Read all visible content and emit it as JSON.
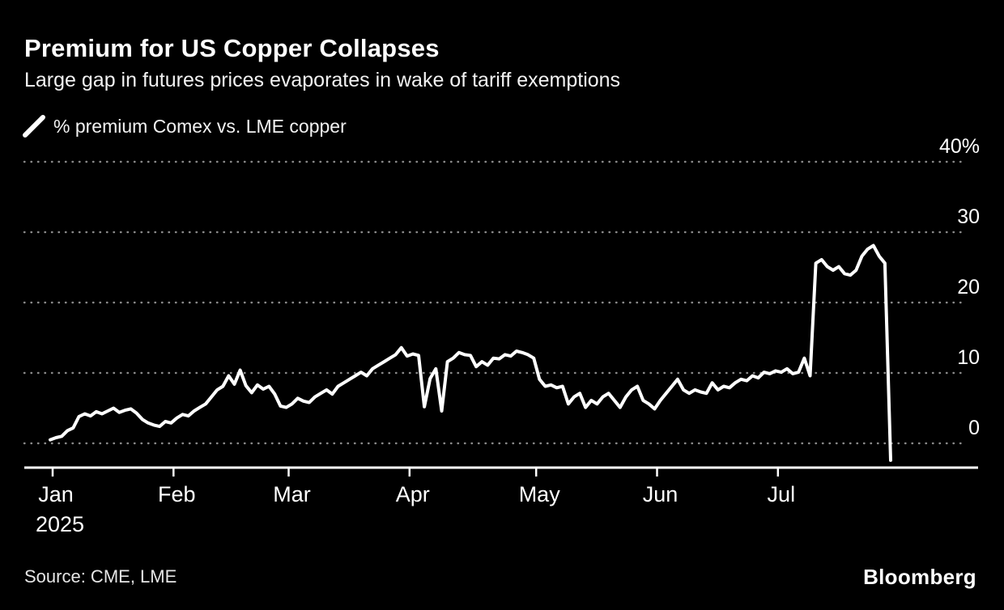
{
  "header": {
    "title": "Premium for US Copper Collapses",
    "subtitle": "Large gap in futures prices evaporates in wake of tariff exemptions"
  },
  "legend": {
    "label": "% premium Comex vs. LME copper"
  },
  "footer": {
    "source": "Source: CME, LME",
    "brand": "Bloomberg"
  },
  "colors": {
    "background": "#000000",
    "line": "#ffffff",
    "grid": "#8a8a8a",
    "axis": "#ffffff",
    "text": "#ffffff"
  },
  "chart_data": {
    "type": "line",
    "title": "% premium Comex vs. LME copper",
    "unit": "%",
    "xlabel": "",
    "ylabel": "% premium",
    "ylim": [
      -3,
      42
    ],
    "grid": "dotted-horizontal",
    "legend_position": "top-left",
    "x_tick_labels": [
      "Jan",
      "Feb",
      "Mar",
      "Apr",
      "May",
      "Jun",
      "Jul"
    ],
    "x_year_label": "2025",
    "month_start_indices": [
      0,
      21,
      41,
      62,
      84,
      105,
      126
    ],
    "y_ticks": [
      {
        "value": 40,
        "label": "40%"
      },
      {
        "value": 30,
        "label": "30"
      },
      {
        "value": 20,
        "label": "20"
      },
      {
        "value": 10,
        "label": "10"
      },
      {
        "value": 0,
        "label": "0"
      }
    ],
    "values": [
      0.5,
      0.8,
      1.0,
      1.8,
      2.2,
      3.8,
      4.2,
      3.9,
      4.5,
      4.2,
      4.6,
      5.0,
      4.4,
      4.7,
      4.9,
      4.3,
      3.4,
      2.9,
      2.6,
      2.4,
      3.1,
      2.9,
      3.6,
      4.1,
      3.9,
      4.6,
      5.1,
      5.6,
      6.6,
      7.6,
      8.1,
      9.6,
      8.4,
      10.4,
      8.2,
      7.2,
      8.3,
      7.7,
      8.1,
      7.0,
      5.3,
      5.1,
      5.6,
      6.4,
      6.0,
      5.8,
      6.6,
      7.1,
      7.6,
      7.0,
      8.1,
      8.6,
      9.1,
      9.6,
      10.1,
      9.6,
      10.6,
      11.1,
      11.6,
      12.1,
      12.6,
      13.6,
      12.4,
      12.7,
      12.5,
      5.2,
      9.2,
      10.6,
      4.6,
      11.6,
      12.1,
      12.9,
      12.6,
      12.5,
      10.9,
      11.6,
      11.1,
      12.1,
      12.0,
      12.6,
      12.4,
      13.1,
      12.9,
      12.6,
      12.1,
      9.1,
      8.1,
      8.3,
      7.9,
      8.1,
      5.6,
      6.6,
      7.1,
      5.1,
      6.1,
      5.6,
      6.6,
      7.1,
      6.1,
      5.1,
      6.6,
      7.6,
      8.1,
      6.1,
      5.6,
      4.9,
      6.1,
      7.1,
      8.1,
      9.1,
      7.6,
      7.1,
      7.6,
      7.3,
      7.1,
      8.6,
      7.6,
      8.1,
      7.9,
      8.6,
      9.1,
      8.9,
      9.6,
      9.3,
      10.1,
      9.9,
      10.3,
      10.1,
      10.6,
      9.9,
      10.1,
      12.1,
      9.6,
      25.6,
      26.1,
      25.1,
      24.6,
      25.1,
      24.1,
      23.9,
      24.6,
      26.6,
      27.6,
      28.1,
      26.6,
      25.6,
      -2.4
    ]
  }
}
